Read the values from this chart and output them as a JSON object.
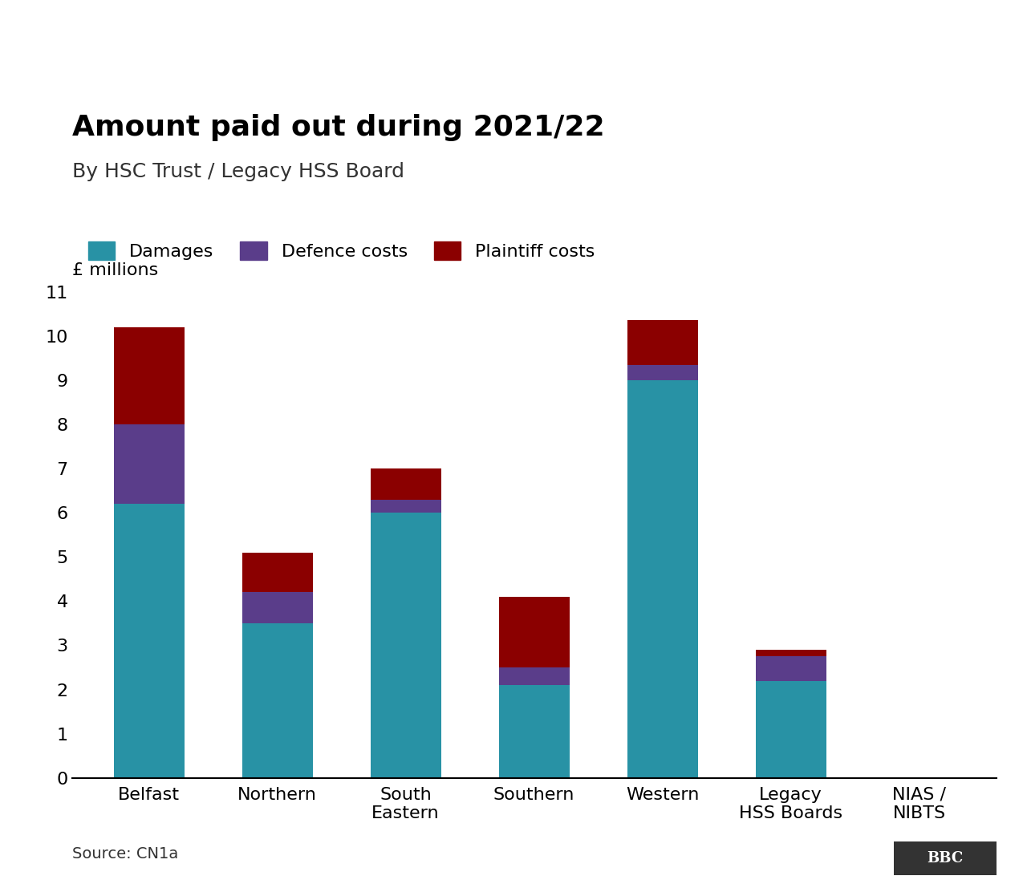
{
  "title": "Amount paid out during 2021/22",
  "subtitle": "By HSC Trust / Legacy HSS Board",
  "ylabel": "£ millions",
  "source": "Source: CN1a",
  "categories": [
    "Belfast",
    "Northern",
    "South\nEastern",
    "Southern",
    "Western",
    "Legacy\nHSS Boards",
    "NIAS /\nNIBTS"
  ],
  "damages": [
    6.2,
    3.5,
    6.0,
    2.1,
    9.0,
    2.2,
    0.0
  ],
  "defence_costs": [
    1.8,
    0.7,
    0.3,
    0.4,
    0.35,
    0.55,
    0.0
  ],
  "plaintiff_costs": [
    2.2,
    0.9,
    0.7,
    1.6,
    1.0,
    0.15,
    0.0
  ],
  "color_damages": "#2892a5",
  "color_defence": "#5a3d8a",
  "color_plaintiff": "#8b0000",
  "ylim": [
    0,
    11
  ],
  "yticks": [
    0,
    1,
    2,
    3,
    4,
    5,
    6,
    7,
    8,
    9,
    10,
    11
  ],
  "title_fontsize": 26,
  "subtitle_fontsize": 18,
  "legend_fontsize": 16,
  "tick_fontsize": 16,
  "label_fontsize": 16,
  "source_fontsize": 14,
  "bar_width": 0.55
}
